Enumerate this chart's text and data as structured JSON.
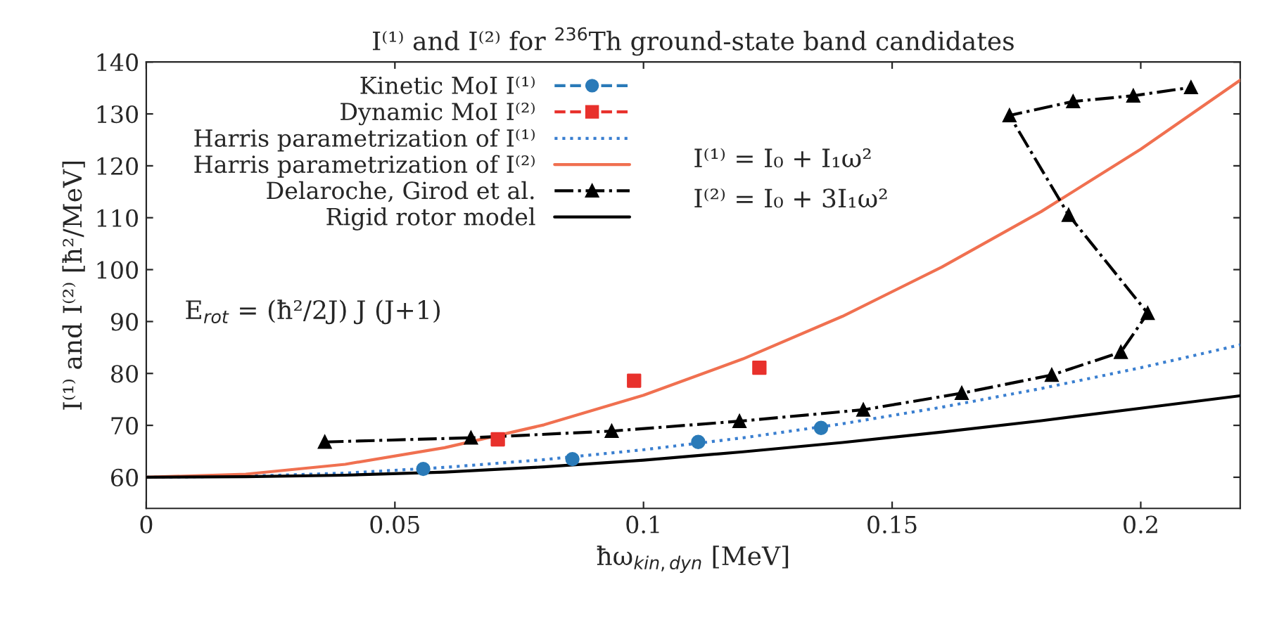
{
  "chart_data": {
    "type": "line",
    "title": "I⁽¹⁾ and I⁽²⁾ for $^{236}$Th ground-state band candidates",
    "xlabel": "ħω$_{kin,dyn}$ [MeV]",
    "ylabel": "I⁽¹⁾ and I⁽²⁾ [ħ²/MeV]",
    "xlim": [
      0,
      0.22
    ],
    "ylim": [
      54,
      140
    ],
    "xticks": [
      0,
      0.05,
      0.1,
      0.15,
      0.2
    ],
    "yticks": [
      60,
      70,
      80,
      90,
      100,
      110,
      120,
      130,
      140
    ],
    "grid": false,
    "legend": "top left",
    "annotations": [
      "E$_{rot}$ = (ħ²/2J) J (J+1)",
      "I⁽¹⁾ = I₀ + I₁ω²",
      "I⁽²⁾ = I₀ + 3I₁ω²"
    ],
    "series": [
      {
        "name": "Kinetic MoI I⁽¹⁾",
        "type": "scatter",
        "color": "#2a7ab8",
        "marker": "circle",
        "x": [
          0.0557,
          0.0857,
          0.111,
          0.1357
        ],
        "values": [
          61.6,
          63.5,
          66.8,
          69.5
        ]
      },
      {
        "name": "Dynamic MoI I⁽²⁾",
        "type": "scatter",
        "color": "#e8312c",
        "marker": "square",
        "x": [
          0.0707,
          0.0981,
          0.1233
        ],
        "values": [
          67.3,
          78.6,
          81.1
        ]
      },
      {
        "name": "Harris parametrization of I⁽¹⁾",
        "type": "line",
        "color": "#3a7fd0",
        "line_style": "dotted",
        "x": [
          0,
          0.02,
          0.04,
          0.06,
          0.08,
          0.1,
          0.12,
          0.14,
          0.16,
          0.18,
          0.2,
          0.22
        ],
        "values": [
          60,
          60.2,
          60.8,
          61.9,
          63.4,
          65.3,
          67.6,
          70.3,
          73.5,
          77.1,
          81.1,
          85.5
        ]
      },
      {
        "name": "Harris parametrization of I⁽²⁾",
        "type": "line",
        "color": "#f07050",
        "line_style": "solid",
        "x": [
          0,
          0.02,
          0.04,
          0.06,
          0.08,
          0.1,
          0.12,
          0.14,
          0.16,
          0.18,
          0.2,
          0.22
        ],
        "values": [
          60,
          60.6,
          62.5,
          65.7,
          70.1,
          75.8,
          82.8,
          91.0,
          100.5,
          111.2,
          123.2,
          136.5
        ]
      },
      {
        "name": "Delaroche, Girod et al.",
        "type": "line",
        "color": "#000000",
        "line_style": "dashdot",
        "marker": "triangle",
        "x": [
          0.0359,
          0.0653,
          0.0936,
          0.1193,
          0.1442,
          0.164,
          0.1821,
          0.196,
          0.2014,
          0.1855,
          0.1736,
          0.1864,
          0.1985,
          0.2101
        ],
        "values": [
          66.8,
          67.6,
          68.9,
          70.8,
          73.0,
          76.2,
          79.7,
          84.1,
          91.6,
          110.5,
          129.7,
          132.4,
          133.5,
          135.1
        ]
      },
      {
        "name": "Rigid rotor model",
        "type": "line",
        "color": "#000000",
        "line_style": "solid",
        "x": [
          0,
          0.02,
          0.04,
          0.06,
          0.08,
          0.1,
          0.12,
          0.14,
          0.16,
          0.18,
          0.2,
          0.22
        ],
        "values": [
          60,
          60.1,
          60.4,
          61.0,
          62.0,
          63.3,
          64.9,
          66.7,
          68.7,
          70.9,
          73.3,
          75.7
        ]
      }
    ]
  }
}
